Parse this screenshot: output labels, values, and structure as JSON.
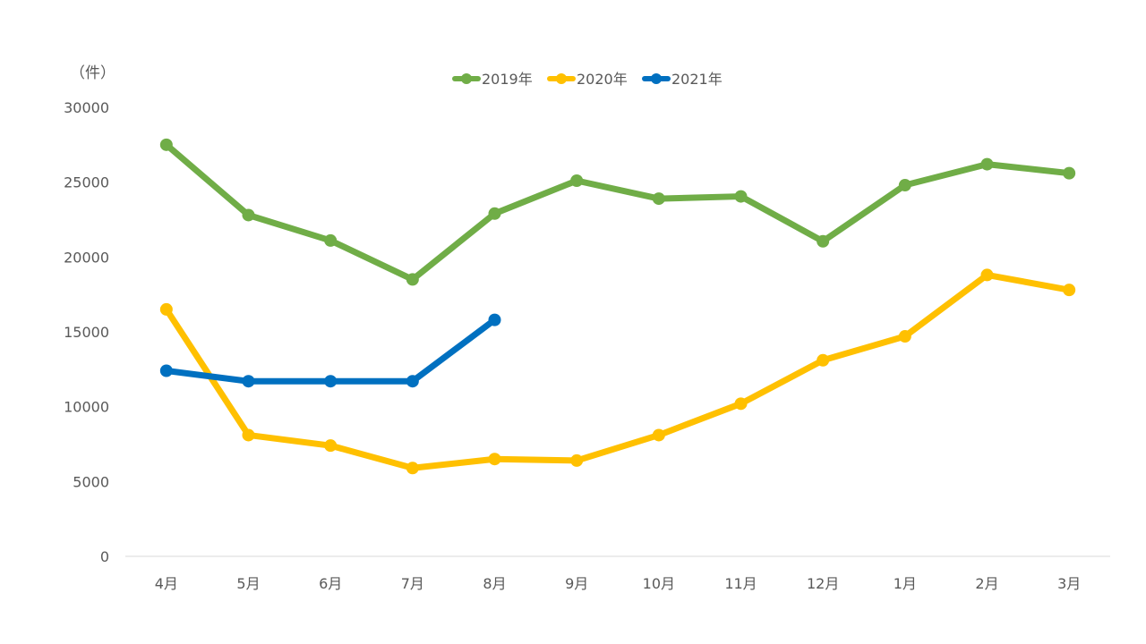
{
  "chart_data": {
    "type": "line",
    "title": "",
    "xlabel": "",
    "ylabel": "",
    "y_unit_label": "（件）",
    "categories": [
      "4月",
      "5月",
      "6月",
      "7月",
      "8月",
      "9月",
      "10月",
      "11月",
      "12月",
      "1月",
      "2月",
      "3月"
    ],
    "ylim": [
      0,
      30000
    ],
    "yticks": [
      0,
      5000,
      10000,
      15000,
      20000,
      25000,
      30000
    ],
    "yticks_labels": [
      "0",
      "5000",
      "10000",
      "15000",
      "20000",
      "25000",
      "30000"
    ],
    "grid": false,
    "legend_position": "top-center",
    "series": [
      {
        "name": "2019年",
        "color": "#70AD47",
        "values": [
          27500,
          22800,
          21100,
          18500,
          22900,
          25100,
          23900,
          24050,
          21050,
          24800,
          26200,
          25600
        ]
      },
      {
        "name": "2020年",
        "color": "#FFC000",
        "values": [
          16500,
          8100,
          7400,
          5900,
          6500,
          6400,
          8100,
          10200,
          13100,
          14700,
          18800,
          17800
        ]
      },
      {
        "name": "2021年",
        "color": "#0070C0",
        "values": [
          12400,
          11700,
          11700,
          11700,
          15800,
          null,
          null,
          null,
          null,
          null,
          null,
          null
        ]
      }
    ]
  }
}
